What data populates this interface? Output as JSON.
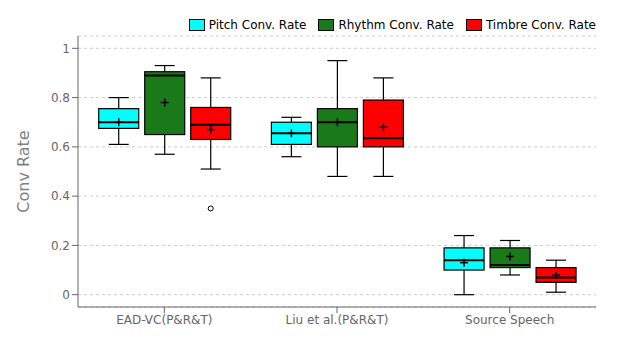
{
  "chart_data": {
    "type": "box",
    "categories": [
      "EAD-VC(P&R&T)",
      "Liu et al.(P&R&T)",
      "Source Speech"
    ],
    "series": [
      {
        "name": "Pitch Conv. Rate",
        "color": "#00FFFF",
        "values": [
          {
            "whislo": 0.61,
            "q1": 0.675,
            "med": 0.7,
            "q3": 0.755,
            "whishi": 0.8,
            "mean": 0.7,
            "fliers": []
          },
          {
            "whislo": 0.56,
            "q1": 0.61,
            "med": 0.655,
            "q3": 0.7,
            "whishi": 0.72,
            "mean": 0.655,
            "fliers": []
          },
          {
            "whislo": 0.0,
            "q1": 0.1,
            "med": 0.14,
            "q3": 0.19,
            "whishi": 0.24,
            "mean": 0.13,
            "fliers": []
          }
        ]
      },
      {
        "name": "Rhythm Conv. Rate",
        "color": "#1A7A1A",
        "values": [
          {
            "whislo": 0.57,
            "q1": 0.65,
            "med": 0.89,
            "q3": 0.905,
            "whishi": 0.93,
            "mean": 0.78,
            "fliers": []
          },
          {
            "whislo": 0.48,
            "q1": 0.6,
            "med": 0.7,
            "q3": 0.755,
            "whishi": 0.95,
            "mean": 0.7,
            "fliers": []
          },
          {
            "whislo": 0.08,
            "q1": 0.11,
            "med": 0.12,
            "q3": 0.19,
            "whishi": 0.22,
            "mean": 0.155,
            "fliers": []
          }
        ]
      },
      {
        "name": "Timbre Conv. Rate",
        "color": "#FF0000",
        "values": [
          {
            "whislo": 0.51,
            "q1": 0.63,
            "med": 0.69,
            "q3": 0.76,
            "whishi": 0.88,
            "mean": 0.67,
            "fliers": [
              0.35
            ]
          },
          {
            "whislo": 0.48,
            "q1": 0.6,
            "med": 0.635,
            "q3": 0.79,
            "whishi": 0.88,
            "mean": 0.68,
            "fliers": []
          },
          {
            "whislo": 0.01,
            "q1": 0.05,
            "med": 0.07,
            "q3": 0.11,
            "whishi": 0.14,
            "mean": 0.08,
            "fliers": []
          }
        ]
      }
    ],
    "ylabel": "Conv Rate",
    "ylim": [
      -0.05,
      1.05
    ],
    "yticks": [
      0.0,
      0.2,
      0.4,
      0.6,
      0.8,
      1.0
    ],
    "grid": true,
    "legend": "upper right"
  }
}
